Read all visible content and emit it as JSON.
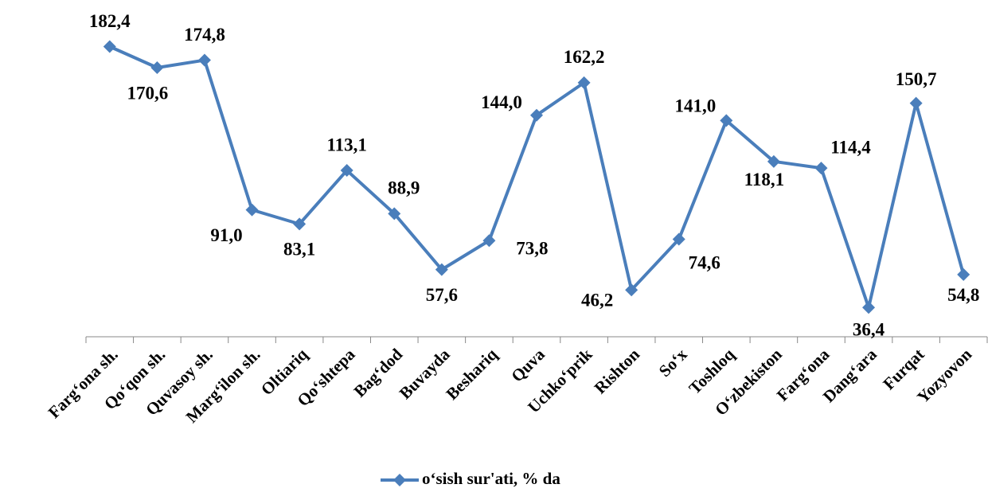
{
  "chart_data": {
    "type": "line",
    "categories": [
      "Farg‘ona sh.",
      "Qo‘qon sh.",
      "Quvasoy sh.",
      "Marg‘ilon sh.",
      "Oltiariq",
      "Qo‘shtepa",
      "Bag‘dod",
      "Buvayda",
      "Beshariq",
      "Quva",
      "Uchko‘prik",
      "Rishton",
      "So‘x",
      "Toshloq",
      "O‘zbekiston",
      "Farg‘ona",
      "Dang‘ara",
      "Furqat",
      "Yozyovon"
    ],
    "series": [
      {
        "name": "o‘sish sur'ati, % da",
        "color": "#4a7ebb",
        "values": [
          182.4,
          170.6,
          174.8,
          91.0,
          83.1,
          113.1,
          88.9,
          57.6,
          73.8,
          144.0,
          162.2,
          46.2,
          74.6,
          141.0,
          118.1,
          114.4,
          36.4,
          150.7,
          54.8
        ],
        "value_labels": [
          "182,4",
          "170,6",
          "174,8",
          "91,0",
          "83,1",
          "113,1",
          "88,9",
          "57,6",
          "73,8",
          "144,0",
          "162,2",
          "46,2",
          "74,6",
          "141,0",
          "118,1",
          "114,4",
          "36,4",
          "150,7",
          "54,8"
        ]
      }
    ],
    "ylim": [
      20,
      200
    ],
    "legend": "bottom"
  }
}
